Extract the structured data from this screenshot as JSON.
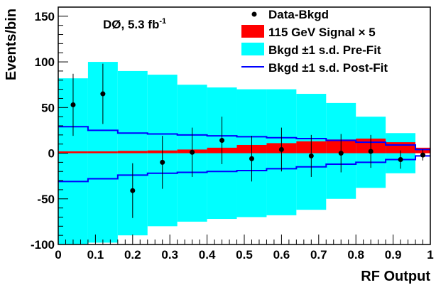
{
  "chart_data": {
    "type": "histogram",
    "title": "DØ, 5.3 fb",
    "title_sup": "-1",
    "xlabel": "RF Output",
    "ylabel": "Events/bin",
    "xlim": [
      0,
      1
    ],
    "ylim": [
      -100,
      160
    ],
    "x_ticks": [
      "0",
      "0.1",
      "0.2",
      "0.3",
      "0.4",
      "0.5",
      "0.6",
      "0.7",
      "0.8",
      "0.9",
      "1"
    ],
    "y_ticks": [
      "-100",
      "-50",
      "0",
      "50",
      "100",
      "150"
    ],
    "bin_edges": [
      0,
      0.08,
      0.16,
      0.24,
      0.32,
      0.4,
      0.48,
      0.56,
      0.64,
      0.72,
      0.8,
      0.88,
      0.96,
      1.0
    ],
    "legend": {
      "position": "top-right",
      "entries": [
        {
          "label": "Data-Bkgd",
          "marker": "dot",
          "color": "#000000"
        },
        {
          "label": "115 GeV Signal",
          "suffix": "× 5",
          "marker": "box",
          "color": "#ff0000"
        },
        {
          "label": "Bkgd ±1 s.d. Pre-Fit",
          "marker": "box",
          "color": "#00ffff"
        },
        {
          "label": "Bkgd ±1 s.d. Post-Fit",
          "marker": "line",
          "color": "#0000ff"
        }
      ]
    },
    "series": [
      {
        "name": "Bkgd ±1 s.d. Pre-Fit",
        "kind": "band",
        "color": "#00ffff",
        "upper": [
          82,
          100,
          90,
          86,
          75,
          72,
          70,
          70,
          65,
          55,
          40,
          22,
          0
        ],
        "lower": [
          -100,
          -98,
          -90,
          -80,
          -75,
          -72,
          -70,
          -68,
          -62,
          -50,
          -38,
          -22,
          0
        ]
      },
      {
        "name": "115 GeV Signal × 5",
        "kind": "filled",
        "color": "#ff0000",
        "values": [
          2,
          2,
          2.5,
          3,
          4,
          6,
          9,
          11,
          13,
          15,
          16,
          12,
          6
        ]
      },
      {
        "name": "Bkgd ±1 s.d. Post-Fit",
        "kind": "step_band",
        "color": "#0000ff",
        "upper": [
          29,
          25,
          22,
          21,
          20,
          19,
          18,
          17,
          16,
          14,
          12,
          9,
          4
        ],
        "lower": [
          -31,
          -28,
          -24,
          -22,
          -21,
          -20,
          -19,
          -17,
          -15,
          -12,
          -10,
          -7,
          -3
        ]
      },
      {
        "name": "Data-Bkgd",
        "kind": "points",
        "color": "#000000",
        "x": [
          0.04,
          0.12,
          0.2,
          0.28,
          0.36,
          0.44,
          0.52,
          0.6,
          0.68,
          0.76,
          0.84,
          0.92,
          0.98
        ],
        "y": [
          53,
          65,
          -41,
          -10,
          1,
          14,
          -6,
          4,
          -3,
          0,
          2,
          -7,
          -2
        ],
        "err": [
          34,
          33,
          30,
          29,
          27,
          26,
          25,
          24,
          23,
          21,
          18,
          10,
          6
        ]
      }
    ]
  }
}
